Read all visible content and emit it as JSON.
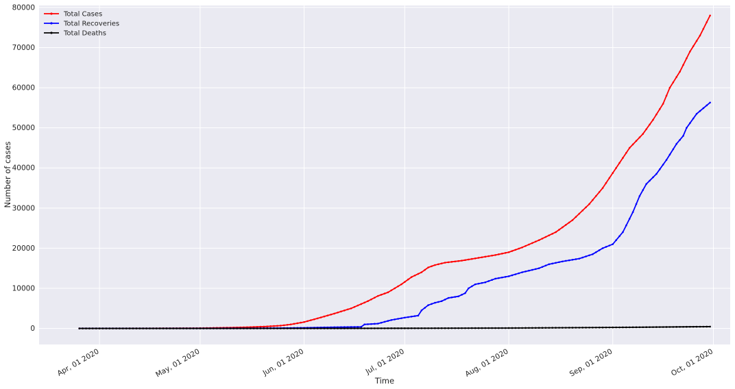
{
  "chart_data": {
    "type": "line",
    "title": "",
    "xlabel": "Time",
    "ylabel": "Number of cases",
    "x_start": "2020-03-26",
    "x_end": "2020-09-30",
    "xlim": [
      "2020-03-14",
      "2020-10-06"
    ],
    "ylim": [
      -4000,
      80500
    ],
    "x_ticks": [
      {
        "date": "2020-04-01",
        "label": "Apr, 01 2020"
      },
      {
        "date": "2020-05-01",
        "label": "May, 01 2020"
      },
      {
        "date": "2020-06-01",
        "label": "Jun, 01 2020"
      },
      {
        "date": "2020-07-01",
        "label": "Jul, 01 2020"
      },
      {
        "date": "2020-08-01",
        "label": "Aug, 01 2020"
      },
      {
        "date": "2020-09-01",
        "label": "Sep, 01 2020"
      },
      {
        "date": "2020-10-01",
        "label": "Oct, 01 2020"
      }
    ],
    "y_ticks": [
      0,
      10000,
      20000,
      30000,
      40000,
      50000,
      60000,
      70000,
      80000
    ],
    "grid": true,
    "legend": "top-left",
    "series": [
      {
        "name": "Total Cases",
        "color": "#ff0000",
        "points": [
          [
            "2020-03-26",
            0
          ],
          [
            "2020-04-15",
            20
          ],
          [
            "2020-05-01",
            80
          ],
          [
            "2020-05-10",
            200
          ],
          [
            "2020-05-15",
            300
          ],
          [
            "2020-05-20",
            450
          ],
          [
            "2020-05-25",
            700
          ],
          [
            "2020-05-28",
            1000
          ],
          [
            "2020-06-01",
            1600
          ],
          [
            "2020-06-05",
            2500
          ],
          [
            "2020-06-10",
            3700
          ],
          [
            "2020-06-15",
            5000
          ],
          [
            "2020-06-20",
            6800
          ],
          [
            "2020-06-23",
            8100
          ],
          [
            "2020-06-26",
            9000
          ],
          [
            "2020-06-30",
            11000
          ],
          [
            "2020-07-03",
            12800
          ],
          [
            "2020-07-06",
            14000
          ],
          [
            "2020-07-08",
            15200
          ],
          [
            "2020-07-10",
            15800
          ],
          [
            "2020-07-13",
            16400
          ],
          [
            "2020-07-18",
            16900
          ],
          [
            "2020-07-23",
            17600
          ],
          [
            "2020-07-28",
            18300
          ],
          [
            "2020-08-01",
            19000
          ],
          [
            "2020-08-05",
            20200
          ],
          [
            "2020-08-10",
            22000
          ],
          [
            "2020-08-15",
            24000
          ],
          [
            "2020-08-20",
            27000
          ],
          [
            "2020-08-25",
            31000
          ],
          [
            "2020-08-29",
            35000
          ],
          [
            "2020-09-02",
            40000
          ],
          [
            "2020-09-06",
            45000
          ],
          [
            "2020-09-10",
            48500
          ],
          [
            "2020-09-13",
            52000
          ],
          [
            "2020-09-16",
            56000
          ],
          [
            "2020-09-18",
            60000
          ],
          [
            "2020-09-21",
            64000
          ],
          [
            "2020-09-24",
            69000
          ],
          [
            "2020-09-27",
            73000
          ],
          [
            "2020-09-30",
            78000
          ]
        ]
      },
      {
        "name": "Total Recoveries",
        "color": "#0000ff",
        "points": [
          [
            "2020-03-26",
            0
          ],
          [
            "2020-05-01",
            20
          ],
          [
            "2020-05-20",
            60
          ],
          [
            "2020-06-01",
            150
          ],
          [
            "2020-06-10",
            300
          ],
          [
            "2020-06-18",
            400
          ],
          [
            "2020-06-19",
            1000
          ],
          [
            "2020-06-23",
            1200
          ],
          [
            "2020-06-27",
            2100
          ],
          [
            "2020-07-01",
            2700
          ],
          [
            "2020-07-05",
            3200
          ],
          [
            "2020-07-06",
            4500
          ],
          [
            "2020-07-08",
            5800
          ],
          [
            "2020-07-10",
            6400
          ],
          [
            "2020-07-12",
            6800
          ],
          [
            "2020-07-14",
            7600
          ],
          [
            "2020-07-17",
            8000
          ],
          [
            "2020-07-19",
            8800
          ],
          [
            "2020-07-20",
            10000
          ],
          [
            "2020-07-22",
            11000
          ],
          [
            "2020-07-25",
            11500
          ],
          [
            "2020-07-28",
            12400
          ],
          [
            "2020-08-01",
            13000
          ],
          [
            "2020-08-05",
            14000
          ],
          [
            "2020-08-10",
            15000
          ],
          [
            "2020-08-13",
            16000
          ],
          [
            "2020-08-17",
            16700
          ],
          [
            "2020-08-22",
            17400
          ],
          [
            "2020-08-26",
            18500
          ],
          [
            "2020-08-29",
            20000
          ],
          [
            "2020-09-01",
            21000
          ],
          [
            "2020-09-04",
            24000
          ],
          [
            "2020-09-07",
            29000
          ],
          [
            "2020-09-09",
            33000
          ],
          [
            "2020-09-11",
            36000
          ],
          [
            "2020-09-14",
            38500
          ],
          [
            "2020-09-17",
            42000
          ],
          [
            "2020-09-20",
            46000
          ],
          [
            "2020-09-22",
            48000
          ],
          [
            "2020-09-23",
            50000
          ],
          [
            "2020-09-26",
            53500
          ],
          [
            "2020-09-30",
            56300
          ]
        ]
      },
      {
        "name": "Total Deaths",
        "color": "#000000",
        "points": [
          [
            "2020-03-26",
            0
          ],
          [
            "2020-06-01",
            10
          ],
          [
            "2020-07-01",
            40
          ],
          [
            "2020-08-01",
            100
          ],
          [
            "2020-09-01",
            250
          ],
          [
            "2020-09-30",
            450
          ]
        ]
      }
    ]
  }
}
